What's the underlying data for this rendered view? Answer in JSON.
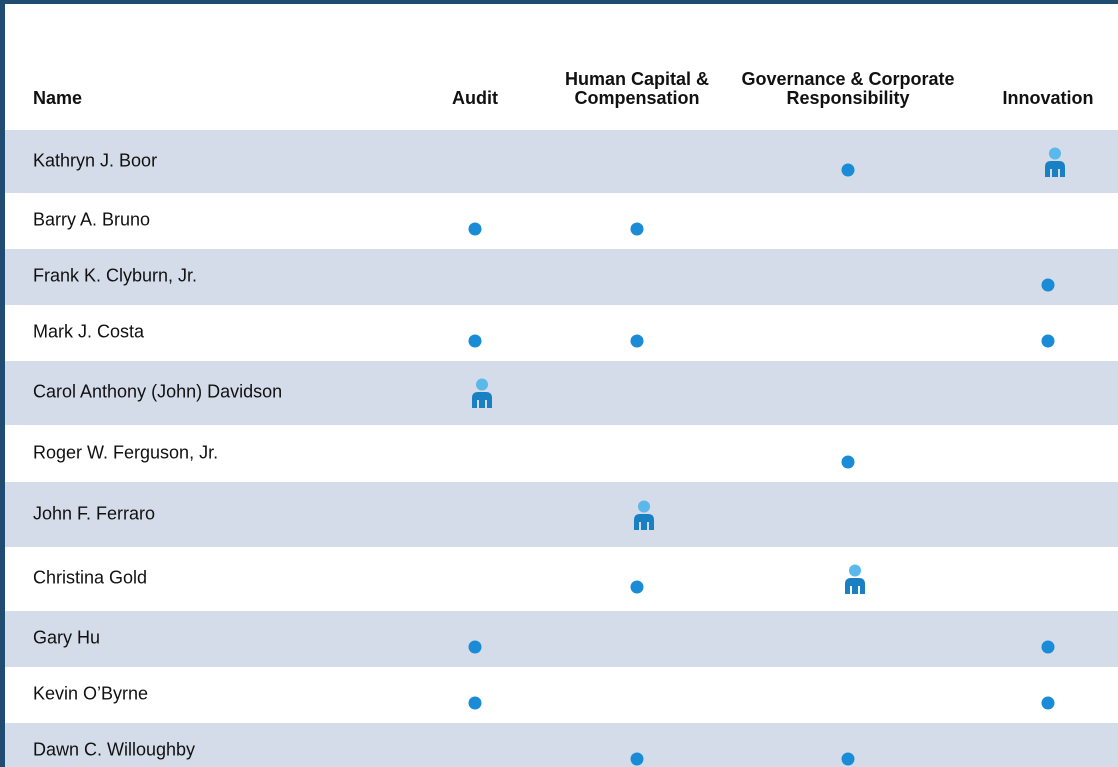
{
  "table": {
    "headers": [
      "Name",
      "Audit",
      "Human Capital & Compensation",
      "Governance & Corporate Responsibility",
      "Innovation"
    ],
    "rows": [
      {
        "name": "Kathryn J. Boor",
        "cells": [
          null,
          null,
          "member",
          "chair"
        ]
      },
      {
        "name": "Barry A. Bruno",
        "cells": [
          "member",
          "member",
          null,
          null
        ]
      },
      {
        "name": "Frank K. Clyburn, Jr.",
        "cells": [
          null,
          null,
          null,
          "member"
        ]
      },
      {
        "name": "Mark J. Costa",
        "cells": [
          "member",
          "member",
          null,
          "member"
        ]
      },
      {
        "name": "Carol Anthony (John) Davidson",
        "cells": [
          "chair",
          null,
          null,
          null
        ]
      },
      {
        "name": "Roger W. Ferguson, Jr.",
        "cells": [
          null,
          null,
          "member",
          null
        ]
      },
      {
        "name": "John F. Ferraro",
        "cells": [
          null,
          "chair",
          null,
          null
        ]
      },
      {
        "name": "Christina Gold",
        "cells": [
          null,
          "member",
          "chair",
          null
        ]
      },
      {
        "name": "Gary Hu",
        "cells": [
          "member",
          null,
          null,
          "member"
        ]
      },
      {
        "name": "Kevin O’Byrne",
        "cells": [
          "member",
          null,
          null,
          "member"
        ]
      },
      {
        "name": "Dawn C. Willoughby",
        "cells": [
          null,
          "member",
          "member",
          null
        ]
      }
    ]
  }
}
